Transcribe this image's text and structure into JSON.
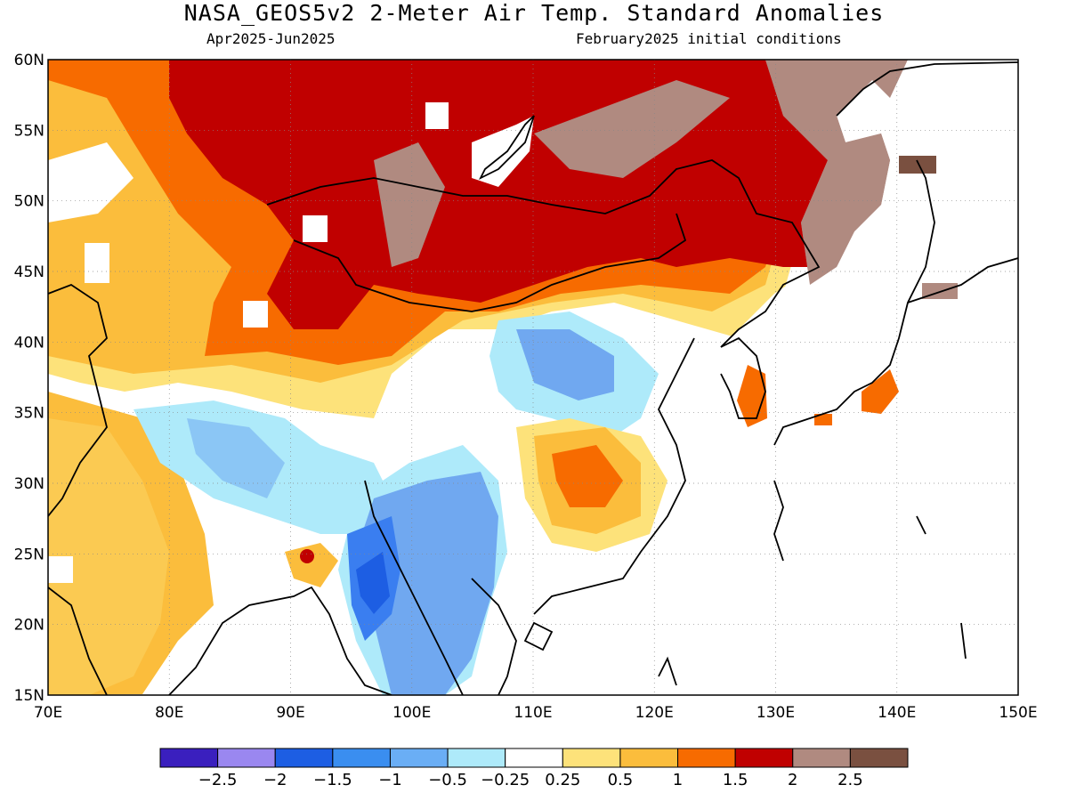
{
  "title": "NASA_GEOS5v2 2-Meter Air Temp. Standard Anomalies",
  "subtitle_left": "Apr2025-Jun2025",
  "subtitle_right": "February2025 initial conditions",
  "map": {
    "lon_range": [
      70,
      150
    ],
    "lat_range": [
      15,
      60
    ],
    "lat_labels": [
      "60N",
      "55N",
      "50N",
      "45N",
      "40N",
      "35N",
      "30N",
      "25N",
      "20N",
      "15N"
    ],
    "lon_labels": [
      "70E",
      "80E",
      "90E",
      "100E",
      "110E",
      "120E",
      "130E",
      "140E",
      "150E"
    ],
    "regions": [
      {
        "name": "siberia-mongolia-warm",
        "level": "1.5-2",
        "color": "#c00000"
      },
      {
        "name": "northeast-asia",
        "level": "2-2.5",
        "color": "#b08a80"
      },
      {
        "name": "sichuan-basin-warm",
        "level": "1-1.5",
        "color": "#f76b00"
      },
      {
        "name": "southwest-china-cool",
        "level": "-1 to -0.5",
        "color": "#70a8f0"
      },
      {
        "name": "myanmar-cool",
        "level": "-1.5 to -1",
        "color": "#3a7ef0"
      }
    ]
  },
  "colorbar": {
    "colors": [
      "#3a1fbe",
      "#9a87f0",
      "#1d5ee3",
      "#3a8ef0",
      "#6aaef5",
      "#aeeafa",
      "#ffffff",
      "#fde27a",
      "#fbbd3c",
      "#f76b00",
      "#c00000",
      "#b08a80",
      "#7a5040"
    ],
    "labels": [
      "-2.5",
      "-2",
      "-1.5",
      "-1",
      "-0.5",
      "-0.25",
      "0.25",
      "0.5",
      "1",
      "1.5",
      "2",
      "2.5"
    ]
  }
}
